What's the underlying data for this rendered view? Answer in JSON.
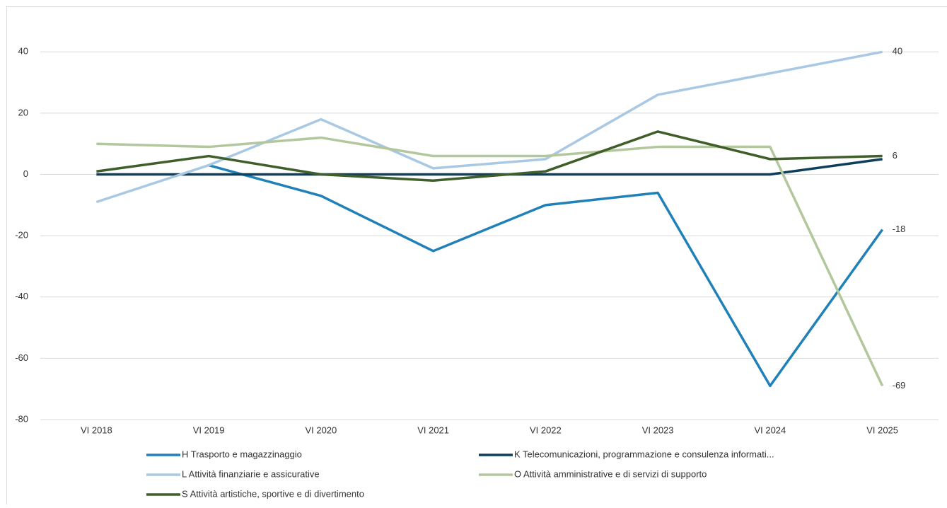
{
  "chart_data": {
    "type": "line",
    "categories": [
      "VI 2018",
      "VI 2019",
      "VI 2020",
      "VI 2021",
      "VI 2022",
      "VI 2023",
      "VI 2024",
      "VI 2025"
    ],
    "ylim": [
      -80,
      50
    ],
    "yticks": [
      -80,
      -60,
      -40,
      -20,
      0,
      20,
      40
    ],
    "grid": true,
    "legend": "bottom",
    "series": [
      {
        "name": "H Trasporto e magazzinaggio",
        "color": "#1f81b8",
        "values": [
          null,
          3,
          -7,
          -25,
          -10,
          -6,
          -69,
          -18
        ],
        "data_labels": "last"
      },
      {
        "name": "K Telecomunicazioni, programmazione e consulenza informati...",
        "color": "#0d3f5c",
        "values": [
          0,
          0,
          0,
          0,
          0,
          0,
          0,
          5
        ]
      },
      {
        "name": "L Attività finanziarie e assicurative",
        "color": "#a9c8e3",
        "values": [
          -9,
          3,
          18,
          2,
          5,
          26,
          33,
          40
        ],
        "data_labels": "last"
      },
      {
        "name": "O Attività amministrative e di servizi di supporto",
        "color": "#b3c79c",
        "values": [
          10,
          9,
          12,
          6,
          6,
          9,
          9,
          -69
        ],
        "data_labels": "last"
      },
      {
        "name": "S Attività artistiche, sportive e di divertimento",
        "color": "#3f5e2a",
        "values": [
          1,
          6,
          0,
          -2,
          1,
          14,
          5,
          6
        ],
        "data_labels": "last"
      }
    ]
  }
}
